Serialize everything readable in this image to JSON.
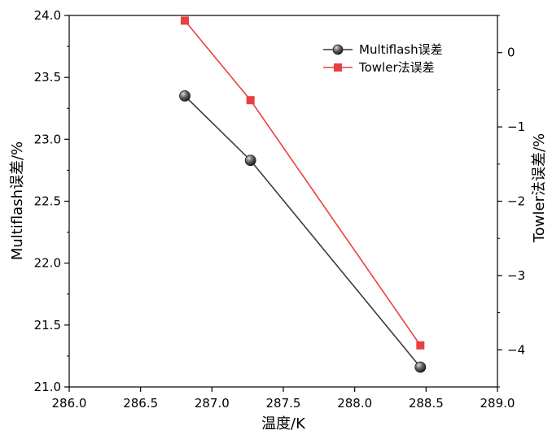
{
  "chart_data": {
    "type": "line",
    "xlabel": "温度/K",
    "ylabel_left": "Multiflash误差/%",
    "ylabel_right": "Towler法误差/%",
    "xlim": [
      286.0,
      289.0
    ],
    "ylim_left": [
      21.0,
      24.0
    ],
    "ylim_right": [
      -4.5,
      0.5
    ],
    "x_ticks": [
      "286.0",
      "286.5",
      "287.0",
      "287.5",
      "288.0",
      "288.5",
      "289.0"
    ],
    "y_ticks_left": [
      "21.0",
      "21.5",
      "22.0",
      "22.5",
      "23.0",
      "23.5",
      "24.0"
    ],
    "y_ticks_right": [
      "0",
      "-1",
      "-2",
      "-3",
      "-4"
    ],
    "legend_position": "top-right",
    "grid": false,
    "series": [
      {
        "name": "Multiflash误差",
        "axis": "left",
        "color": "#3a3a3a",
        "marker": "circle",
        "x": [
          286.81,
          287.27,
          288.46
        ],
        "y": [
          23.35,
          22.83,
          21.16
        ]
      },
      {
        "name": "Towler法误差",
        "axis": "right",
        "color": "#e8403f",
        "marker": "square",
        "x": [
          286.81,
          287.27,
          288.46
        ],
        "y": [
          0.43,
          -0.64,
          -3.94
        ]
      }
    ]
  }
}
